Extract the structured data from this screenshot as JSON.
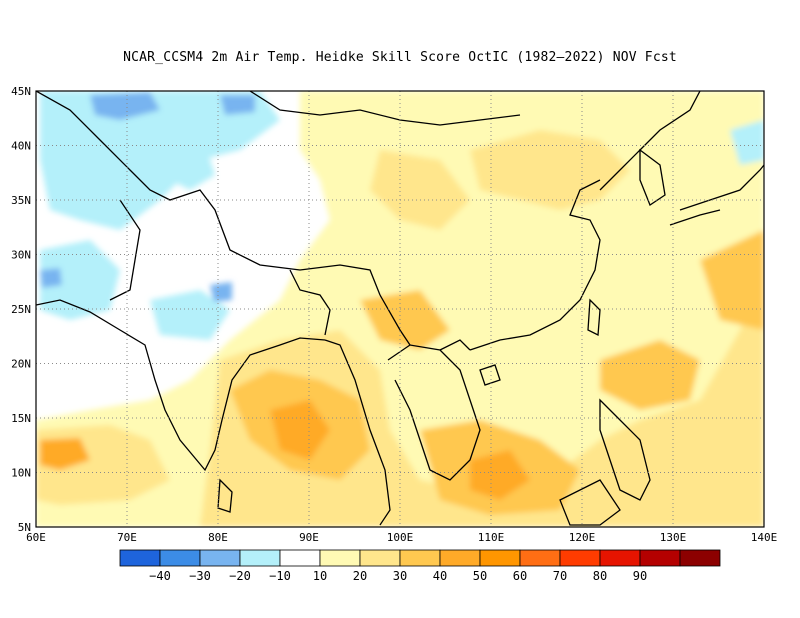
{
  "title": "NCAR_CCSM4  2m Air Temp. Heidke Skill Score OctIC (1982–2022) NOV Fcst",
  "map": {
    "lon_range": [
      60,
      140
    ],
    "lat_range": [
      5,
      45
    ],
    "lat_ticks": [
      {
        "value": 45,
        "label": "45N"
      },
      {
        "value": 40,
        "label": "40N"
      },
      {
        "value": 35,
        "label": "35N"
      },
      {
        "value": 30,
        "label": "30N"
      },
      {
        "value": 25,
        "label": "25N"
      },
      {
        "value": 20,
        "label": "20N"
      },
      {
        "value": 15,
        "label": "15N"
      },
      {
        "value": 10,
        "label": "10N"
      },
      {
        "value": 5,
        "label": "5N"
      }
    ],
    "lon_ticks": [
      {
        "value": 60,
        "label": "60E"
      },
      {
        "value": 70,
        "label": "70E"
      },
      {
        "value": 80,
        "label": "80E"
      },
      {
        "value": 90,
        "label": "90E"
      },
      {
        "value": 100,
        "label": "100E"
      },
      {
        "value": 110,
        "label": "110E"
      },
      {
        "value": 120,
        "label": "120E"
      },
      {
        "value": 130,
        "label": "130E"
      },
      {
        "value": 140,
        "label": "140E"
      }
    ],
    "grid": "dotted",
    "colors": {
      "neg40": "#1e64dc",
      "neg30": "#3c8ce6",
      "neg20": "#78b4f0",
      "neg10": "#b4f0fa",
      "zero": "#ffffff",
      "p10": "#fffab4",
      "p20": "#ffe68c",
      "p30": "#ffc850",
      "p40": "#ffaa28",
      "p50": "#ff9600",
      "p60": "#ff6e14",
      "p70": "#ff3c00",
      "p80": "#e61400",
      "p90": "#b40000",
      "p100": "#8c0000"
    }
  },
  "colorbar": {
    "colors": [
      "#1e64dc",
      "#3c8ce6",
      "#78b4f0",
      "#b4f0fa",
      "#ffffff",
      "#fffab4",
      "#ffe68c",
      "#ffc850",
      "#ffaa28",
      "#ff9600",
      "#ff6e14",
      "#ff3c00",
      "#e61400",
      "#b40000",
      "#8c0000"
    ],
    "labels": [
      "−40",
      "−30",
      "−20",
      "−10",
      "10",
      "20",
      "30",
      "40",
      "50",
      "60",
      "70",
      "80",
      "90"
    ]
  }
}
